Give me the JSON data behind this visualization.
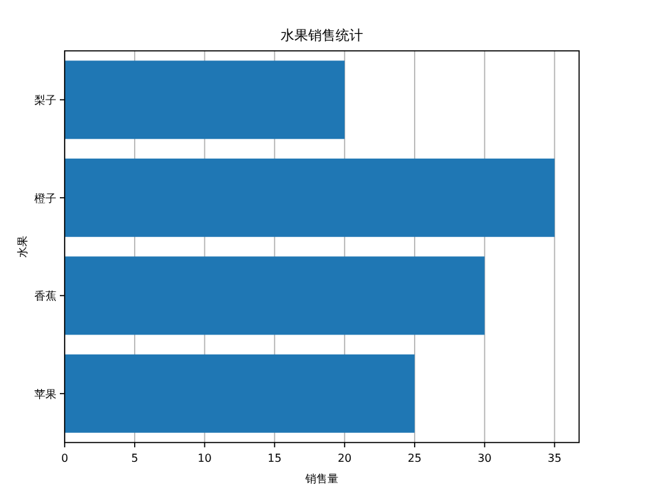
{
  "chart_data": {
    "type": "bar",
    "orientation": "horizontal",
    "title": "水果销售统计",
    "xlabel": "销售量",
    "ylabel": "水果",
    "categories": [
      "梨子",
      "橙子",
      "香蕉",
      "苹果"
    ],
    "values": [
      20,
      35,
      30,
      25
    ],
    "color": "#1f77b4",
    "xlim": [
      0,
      36.75
    ],
    "xticks": [
      0,
      5,
      10,
      15,
      20,
      25,
      30,
      35
    ],
    "grid": "x"
  }
}
